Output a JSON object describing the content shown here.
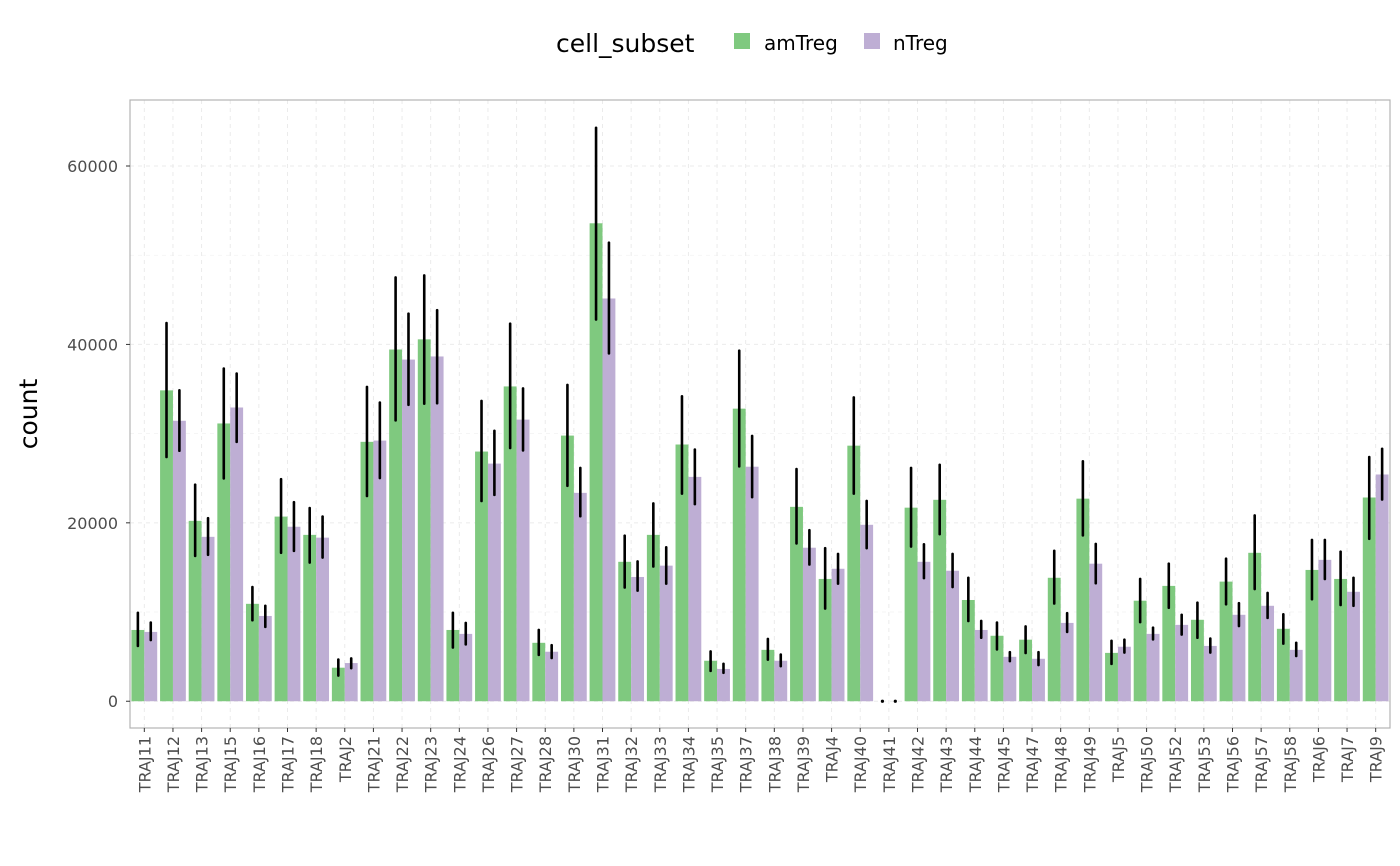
{
  "chart_data": {
    "type": "bar",
    "title": "",
    "xlabel": "",
    "ylabel": "count",
    "ylim": [
      -3000,
      67400
    ],
    "yticks": [
      0,
      20000,
      40000,
      60000
    ],
    "ytick_labels": [
      "0",
      "20000",
      "40000",
      "60000"
    ],
    "grid": true,
    "legend": {
      "title": "cell_subset",
      "position": "top"
    },
    "categories": [
      "TRAJ11",
      "TRAJ12",
      "TRAJ13",
      "TRAJ15",
      "TRAJ16",
      "TRAJ17",
      "TRAJ18",
      "TRAJ2",
      "TRAJ21",
      "TRAJ22",
      "TRAJ23",
      "TRAJ24",
      "TRAJ26",
      "TRAJ27",
      "TRAJ28",
      "TRAJ30",
      "TRAJ31",
      "TRAJ32",
      "TRAJ33",
      "TRAJ34",
      "TRAJ35",
      "TRAJ37",
      "TRAJ38",
      "TRAJ39",
      "TRAJ4",
      "TRAJ40",
      "TRAJ41",
      "TRAJ42",
      "TRAJ43",
      "TRAJ44",
      "TRAJ45",
      "TRAJ47",
      "TRAJ48",
      "TRAJ49",
      "TRAJ5",
      "TRAJ50",
      "TRAJ52",
      "TRAJ53",
      "TRAJ56",
      "TRAJ57",
      "TRAJ58",
      "TRAJ6",
      "TRAJ7",
      "TRAJ9"
    ],
    "series": [
      {
        "name": "amTreg",
        "color": "#7fc97f",
        "values": [
          7990,
          34850,
          20220,
          31140,
          10920,
          20700,
          18650,
          3760,
          29080,
          39430,
          40570,
          7990,
          27990,
          35290,
          6550,
          29780,
          53580,
          15630,
          18650,
          28780,
          4540,
          32800,
          5760,
          21790,
          13710,
          28650,
          0,
          21700,
          22580,
          11350,
          7340,
          6900,
          13840,
          22710,
          5420,
          11270,
          12930,
          9130,
          13410,
          16640,
          8120,
          14720,
          13710,
          22840
        ],
        "error_low": [
          6200,
          27380,
          16290,
          24980,
          9080,
          16640,
          15550,
          2880,
          23010,
          31490,
          33360,
          6030,
          22450,
          28390,
          5200,
          24150,
          42800,
          12750,
          15110,
          23280,
          3410,
          26330,
          4670,
          17690,
          10390,
          23280,
          0,
          17340,
          18730,
          9000,
          5810,
          5410,
          10960,
          18600,
          4190,
          8870,
          10480,
          7120,
          10870,
          12580,
          6460,
          11440,
          10790,
          18210
        ],
        "error_high": [
          9910,
          42400,
          24280,
          37290,
          12800,
          24890,
          21660,
          4670,
          35240,
          47510,
          47730,
          9910,
          33670,
          42320,
          7990,
          35460,
          64280,
          18560,
          22180,
          34190,
          5590,
          39300,
          6990,
          26030,
          17160,
          34060,
          0,
          26160,
          26510,
          13840,
          8820,
          8380,
          16860,
          26900,
          6770,
          13710,
          15420,
          11050,
          15980,
          20830,
          9740,
          18080,
          16770,
          27380
        ]
      },
      {
        "name": "nTreg",
        "color": "#beaed4",
        "values": [
          7770,
          31440,
          18430,
          32930,
          9560,
          19560,
          18340,
          4280,
          29220,
          38300,
          38650,
          7550,
          26640,
          31570,
          5550,
          23360,
          45150,
          13930,
          15200,
          25150,
          3620,
          26290,
          4540,
          17210,
          14850,
          19780,
          0,
          15630,
          14630,
          7990,
          4980,
          4760,
          8780,
          15420,
          6110,
          7550,
          8560,
          6200,
          9690,
          10700,
          5760,
          15850,
          12270,
          25420
        ],
        "error_low": [
          6860,
          28080,
          16420,
          29080,
          8340,
          16860,
          16110,
          3710,
          25020,
          33230,
          33410,
          6380,
          23140,
          28120,
          4850,
          20740,
          39000,
          12400,
          13190,
          22100,
          3190,
          22880,
          3930,
          15330,
          13190,
          17160,
          0,
          13800,
          12800,
          7120,
          4500,
          4060,
          7770,
          13230,
          5460,
          6940,
          7470,
          5460,
          8430,
          9350,
          5070,
          13710,
          10700,
          22620
        ],
        "error_high": [
          8820,
          34850,
          20520,
          36730,
          10700,
          22320,
          20700,
          4800,
          33490,
          43450,
          43840,
          8780,
          30310,
          35070,
          6290,
          26160,
          51400,
          15680,
          17250,
          28210,
          4190,
          29740,
          5240,
          19170,
          16510,
          22450,
          0,
          17600,
          16510,
          9000,
          5500,
          5500,
          9870,
          17640,
          6900,
          8250,
          9690,
          7030,
          11000,
          12140,
          6550,
          18080,
          13840,
          28300
        ]
      }
    ]
  }
}
